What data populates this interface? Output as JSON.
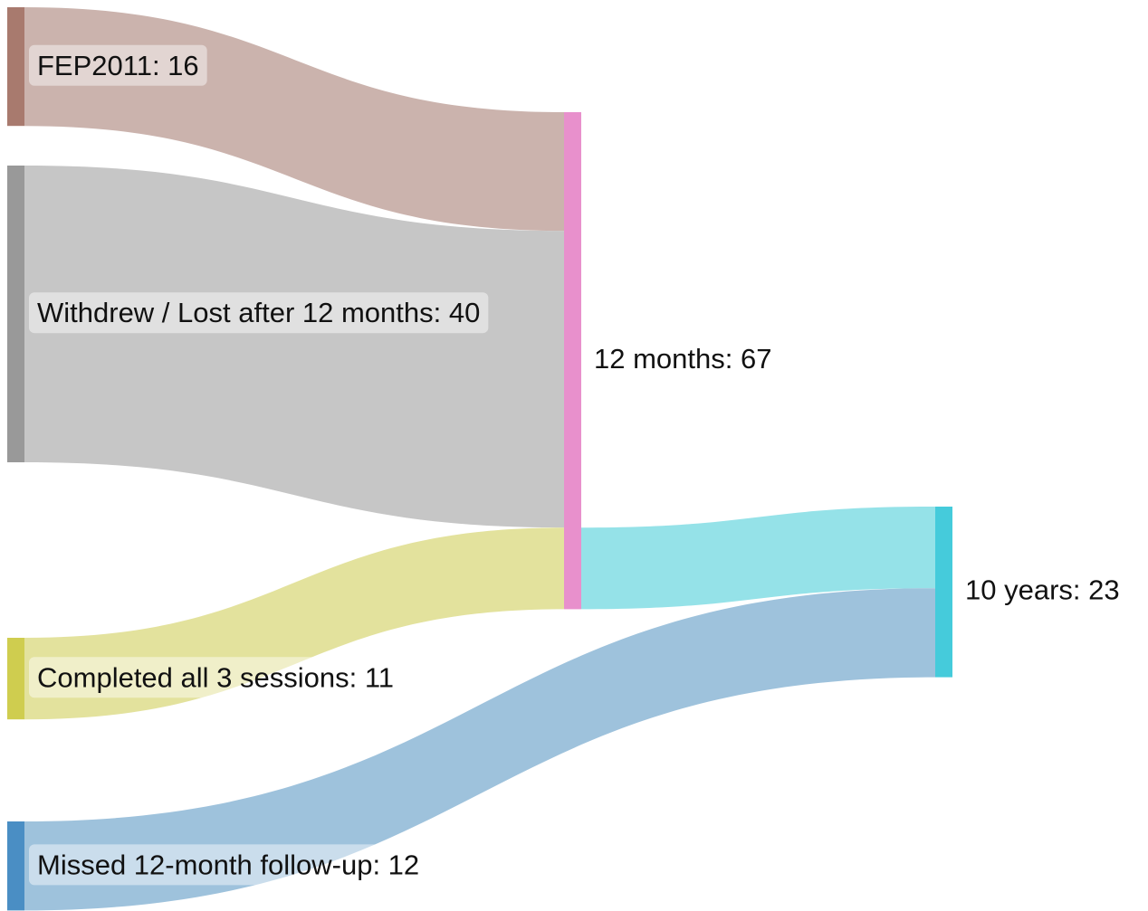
{
  "chart_data": {
    "type": "sankey",
    "nodes": [
      {
        "label": "FEP2011: 16",
        "value": 16,
        "color": "#a87a6e"
      },
      {
        "label": "Withdrew / Lost after 12 months: 40",
        "value": 40,
        "color": "#999999"
      },
      {
        "label": "Completed all 3 sessions: 11",
        "value": 11,
        "color": "#cfcd4f"
      },
      {
        "label": "Missed 12-month follow-up: 12",
        "value": 12,
        "color": "#4a8ec4"
      },
      {
        "label": "12 months: 67",
        "value": 67,
        "color": "#e890cc"
      },
      {
        "label": "10 years: 23",
        "value": 23,
        "color": "#45cbdb"
      }
    ],
    "links": [
      {
        "source": 0,
        "target": 4,
        "value": 16,
        "color": "#cbb3ad"
      },
      {
        "source": 1,
        "target": 4,
        "value": 40,
        "color": "#c6c6c6"
      },
      {
        "source": 2,
        "target": 4,
        "value": 11,
        "color": "#e3e29d"
      },
      {
        "source": 4,
        "target": 5,
        "value": 11,
        "color": "#95e2e8"
      },
      {
        "source": 3,
        "target": 5,
        "value": 12,
        "color": "#9ec2dc"
      }
    ]
  }
}
